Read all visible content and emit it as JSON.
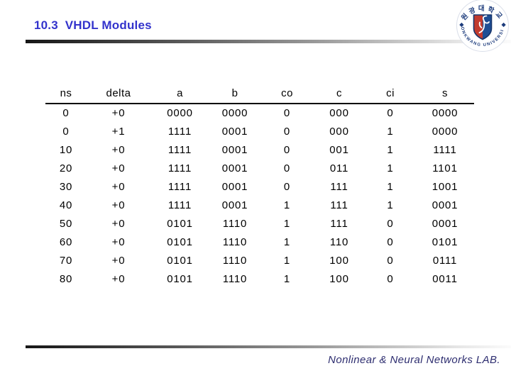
{
  "slide": {
    "title": "10.3  VHDL Modules",
    "title_color": "#3333cc",
    "footer_text": "Nonlinear & Neural Networks LAB.",
    "footer_color": "#2e2e70"
  },
  "logo": {
    "top_text": "원광대학교",
    "bottom_text": "WONKWANG UNIVERSITY",
    "ring_text_color": "#1d3c7c",
    "shield_left_color": "#c23b2e",
    "shield_right_color": "#1e4e94"
  },
  "table": {
    "columns": [
      "ns",
      "delta",
      "a",
      "b",
      "co",
      "c",
      "ci",
      "s"
    ],
    "rows": [
      [
        "0",
        "+0",
        "0000",
        "0000",
        "0",
        "000",
        "0",
        "0000"
      ],
      [
        "0",
        "+1",
        "1111",
        "0001",
        "0",
        "000",
        "1",
        "0000"
      ],
      [
        "10",
        "+0",
        "1111",
        "0001",
        "0",
        "001",
        "1",
        "1111"
      ],
      [
        "20",
        "+0",
        "1111",
        "0001",
        "0",
        "011",
        "1",
        "1101"
      ],
      [
        "30",
        "+0",
        "1111",
        "0001",
        "0",
        "111",
        "1",
        "1001"
      ],
      [
        "40",
        "+0",
        "1111",
        "0001",
        "1",
        "111",
        "1",
        "0001"
      ],
      [
        "50",
        "+0",
        "0101",
        "1110",
        "1",
        "111",
        "0",
        "0001"
      ],
      [
        "60",
        "+0",
        "0101",
        "1110",
        "1",
        "110",
        "0",
        "0101"
      ],
      [
        "70",
        "+0",
        "0101",
        "1110",
        "1",
        "100",
        "0",
        "0111"
      ],
      [
        "80",
        "+0",
        "0101",
        "1110",
        "1",
        "100",
        "0",
        "0011"
      ]
    ]
  }
}
